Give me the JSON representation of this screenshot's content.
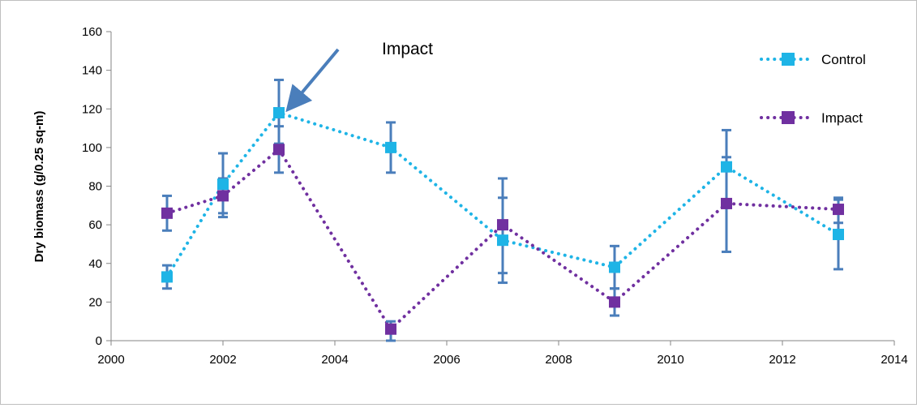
{
  "chart_data": {
    "type": "scatter",
    "title": "",
    "xlabel": "",
    "ylabel": "Dry biomass (g/0.25 sq-m)",
    "xlim": [
      2000,
      2014
    ],
    "ylim": [
      0,
      160
    ],
    "xticks": [
      2000,
      2002,
      2004,
      2006,
      2008,
      2010,
      2012,
      2014
    ],
    "yticks": [
      0,
      20,
      40,
      60,
      80,
      100,
      120,
      140,
      160
    ],
    "grid": false,
    "legend_position": "top-right",
    "line_style": "dotted",
    "series": [
      {
        "name": "Control",
        "color": "#1eb4e6",
        "marker": "square",
        "x": [
          2001,
          2002,
          2003,
          2005,
          2007,
          2009,
          2011,
          2013
        ],
        "y": [
          33,
          81,
          118,
          100,
          52,
          38,
          90,
          55
        ],
        "err_low": [
          27,
          64,
          102,
          87,
          30,
          27,
          71,
          37
        ],
        "err_high": [
          39,
          97,
          135,
          113,
          74,
          49,
          109,
          73
        ]
      },
      {
        "name": "Impact",
        "color": "#7030a0",
        "marker": "square",
        "x": [
          2001,
          2002,
          2003,
          2005,
          2007,
          2009,
          2011,
          2013
        ],
        "y": [
          66,
          75,
          99,
          6,
          60,
          20,
          71,
          68
        ],
        "err_low": [
          57,
          66,
          87,
          0,
          35,
          13,
          46,
          61
        ],
        "err_high": [
          75,
          84,
          111,
          10,
          84,
          27,
          95,
          74
        ]
      }
    ],
    "error_bar_color": "#4a7ebb",
    "annotations": [
      {
        "text": "Impact",
        "arrow_to_x": 2003,
        "arrow_to_y": 118,
        "arrow_color": "#4a7ebb"
      }
    ]
  }
}
